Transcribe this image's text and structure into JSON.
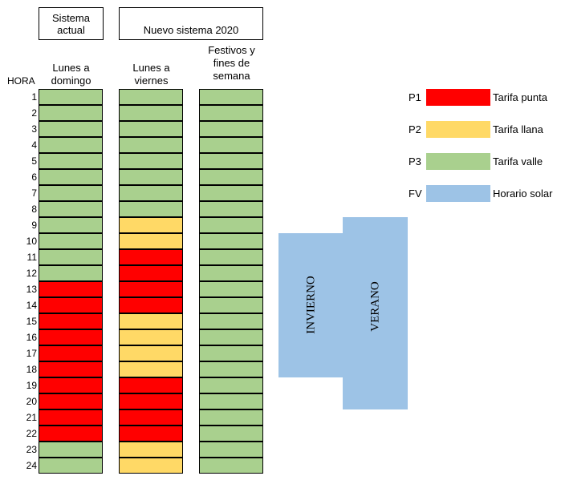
{
  "headers": {
    "current_system": "Sistema actual",
    "new_system": "Nuevo sistema 2020",
    "hour_label": "HORA",
    "col_current": "Lunes a domingo",
    "col_weekdays": "Lunes a viernes",
    "col_holidays": "Festivos y fines de semana"
  },
  "colors": {
    "P1": "#ff0000",
    "P2": "#ffd966",
    "P3": "#a9d08e",
    "FV": "#9dc3e6"
  },
  "hours": [
    "1",
    "2",
    "3",
    "4",
    "5",
    "6",
    "7",
    "8",
    "9",
    "10",
    "11",
    "12",
    "13",
    "14",
    "15",
    "16",
    "17",
    "18",
    "19",
    "20",
    "21",
    "22",
    "23",
    "24"
  ],
  "schedule": {
    "current": [
      "P3",
      "P3",
      "P3",
      "P3",
      "P3",
      "P3",
      "P3",
      "P3",
      "P3",
      "P3",
      "P3",
      "P3",
      "P1",
      "P1",
      "P1",
      "P1",
      "P1",
      "P1",
      "P1",
      "P1",
      "P1",
      "P1",
      "P3",
      "P3"
    ],
    "weekdays": [
      "P3",
      "P3",
      "P3",
      "P3",
      "P3",
      "P3",
      "P3",
      "P3",
      "P2",
      "P2",
      "P1",
      "P1",
      "P1",
      "P1",
      "P2",
      "P2",
      "P2",
      "P2",
      "P1",
      "P1",
      "P1",
      "P1",
      "P2",
      "P2"
    ],
    "holidays": [
      "P3",
      "P3",
      "P3",
      "P3",
      "P3",
      "P3",
      "P3",
      "P3",
      "P3",
      "P3",
      "P3",
      "P3",
      "P3",
      "P3",
      "P3",
      "P3",
      "P3",
      "P3",
      "P3",
      "P3",
      "P3",
      "P3",
      "P3",
      "P3"
    ]
  },
  "legend": [
    {
      "code": "P1",
      "label": "Tarifa punta"
    },
    {
      "code": "P2",
      "label": "Tarifa llana"
    },
    {
      "code": "P3",
      "label": "Tarifa valle"
    },
    {
      "code": "FV",
      "label": "Horario solar"
    }
  ],
  "solar": {
    "winter_label": "INVIERNO",
    "summer_label": "VERANO"
  }
}
